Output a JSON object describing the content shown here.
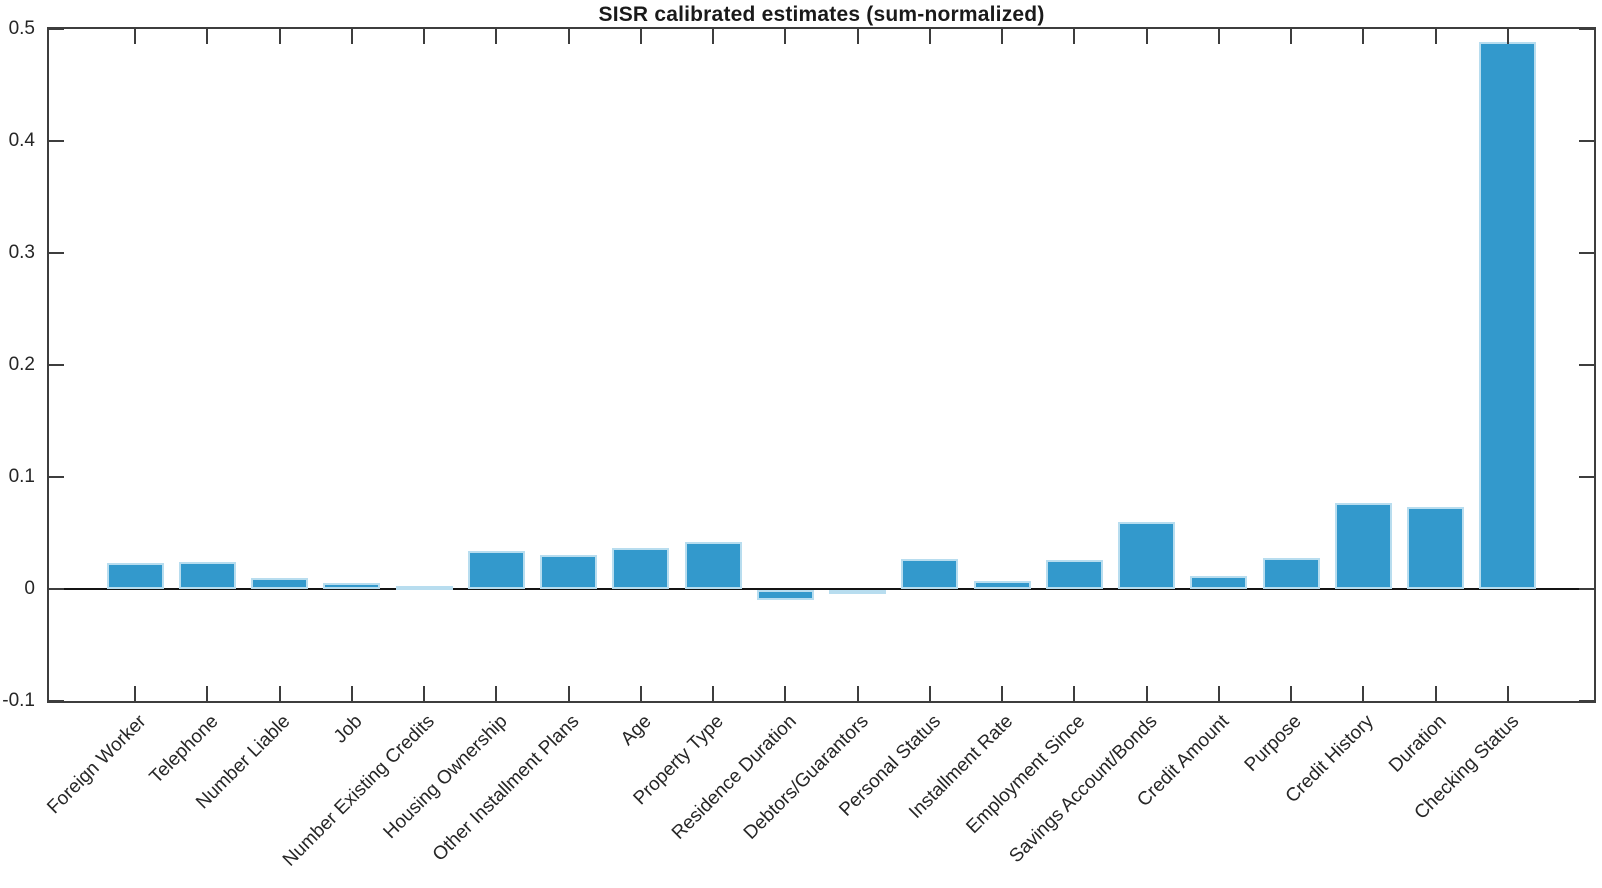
{
  "chart_data": {
    "type": "bar",
    "title": "SISR calibrated estimates (sum-normalized)",
    "xlabel": "",
    "ylabel": "",
    "grid": false,
    "legend": null,
    "x_tick_rotation_deg": 45,
    "ylim": [
      -0.1,
      0.5
    ],
    "yticks": [
      -0.1,
      0,
      0.1,
      0.2,
      0.3,
      0.4,
      0.5
    ],
    "ytick_labels": [
      "-0.1",
      "0",
      "0.1",
      "0.2",
      "0.3",
      "0.4",
      "0.5"
    ],
    "categories": [
      "Foreign Worker",
      "Telephone",
      "Number Liable",
      "Job",
      "Number Existing Credits",
      "Housing Ownership",
      "Other Installment Plans",
      "Age",
      "Property Type",
      "Residence Duration",
      "Debtors/Guarantors",
      "Personal Status",
      "Installment Rate",
      "Employment Since",
      "Savings Account/Bonds",
      "Credit Amount",
      "Purpose",
      "Credit History",
      "Duration",
      "Checking Status"
    ],
    "values": [
      0.023,
      0.024,
      0.01,
      0.005,
      0.003,
      0.034,
      0.03,
      0.037,
      0.042,
      -0.009,
      -0.001,
      0.027,
      0.007,
      0.026,
      0.06,
      0.012,
      0.028,
      0.077,
      0.073,
      0.488
    ],
    "colors": {
      "bar_fill": "#3399cc",
      "bar_edge": "#b8ddef",
      "axis_line": "#3d3d3d",
      "zero_line": "#141414",
      "text": "#262626",
      "title": "#1a1a1a",
      "background": "#ffffff"
    }
  }
}
